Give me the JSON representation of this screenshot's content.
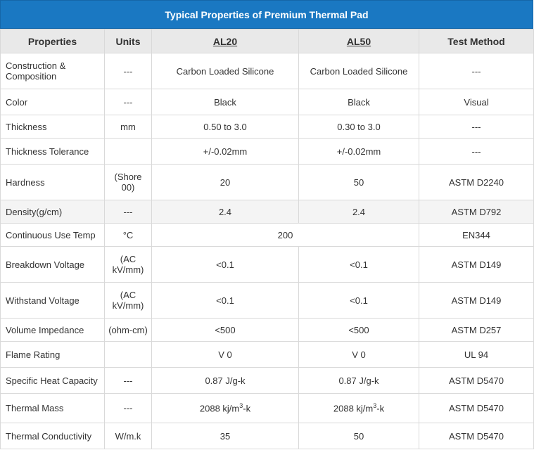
{
  "title": "Typical Properties of Premium Thermal Pad",
  "headers": {
    "properties": "Properties",
    "units": "Units",
    "al20": "AL20",
    "al50": "AL50",
    "test_method": "Test Method"
  },
  "rows": [
    {
      "property": "Construction & Composition",
      "unit": "---",
      "al20": "Carbon Loaded Silicone",
      "al50": "Carbon Loaded Silicone",
      "test": "---"
    },
    {
      "property": "Color",
      "unit": "---",
      "al20": "Black",
      "al50": "Black",
      "test": "Visual"
    },
    {
      "property": "Thickness",
      "unit": "mm",
      "al20": "0.50 to 3.0",
      "al50": "0.30 to 3.0",
      "test": "---"
    },
    {
      "property": "Thickness Tolerance",
      "unit": "",
      "al20": "+/-0.02mm",
      "al50": "+/-0.02mm",
      "test": "---"
    },
    {
      "property": "Hardness",
      "unit": "(Shore 00)",
      "al20": "20",
      "al50": "50",
      "test": "ASTM D2240"
    },
    {
      "property": "Density(g/cm)",
      "unit": "---",
      "al20": "2.4",
      "al50": "2.4",
      "test": "ASTM D792"
    },
    {
      "property": "Continuous Use Temp",
      "unit": "°C",
      "merged": "200",
      "test": "EN344"
    },
    {
      "property": "Breakdown Voltage",
      "unit": "(AC kV/mm)",
      "al20": "<0.1",
      "al50": "<0.1",
      "test": "ASTM D149"
    },
    {
      "property": "Withstand Voltage",
      "unit": "(AC kV/mm)",
      "al20": "<0.1",
      "al50": "<0.1",
      "test": "ASTM D149"
    },
    {
      "property": "Volume Impedance",
      "unit": "(ohm-cm)",
      "al20": "<500",
      "al50": "<500",
      "test": "ASTM D257"
    },
    {
      "property": "Flame Rating",
      "unit": "",
      "al20": "V 0",
      "al50": "V 0",
      "test": "UL 94"
    },
    {
      "property": "Specific Heat Capacity",
      "unit": "---",
      "al20": "0.87 J/g-k",
      "al50": "0.87 J/g-k",
      "test": "ASTM D5470"
    },
    {
      "property": "Thermal Mass",
      "unit": "---",
      "al20_pre": "2088 kj/m",
      "al20_sup": "3",
      "al20_post": "-k",
      "al50_pre": "2088 kj/m",
      "al50_sup": "3",
      "al50_post": "-k",
      "test": "ASTM D5470"
    },
    {
      "property": "Thermal Conductivity",
      "unit": "W/m.k",
      "al20": "35",
      "al50": "50",
      "test": "ASTM D5470"
    }
  ]
}
